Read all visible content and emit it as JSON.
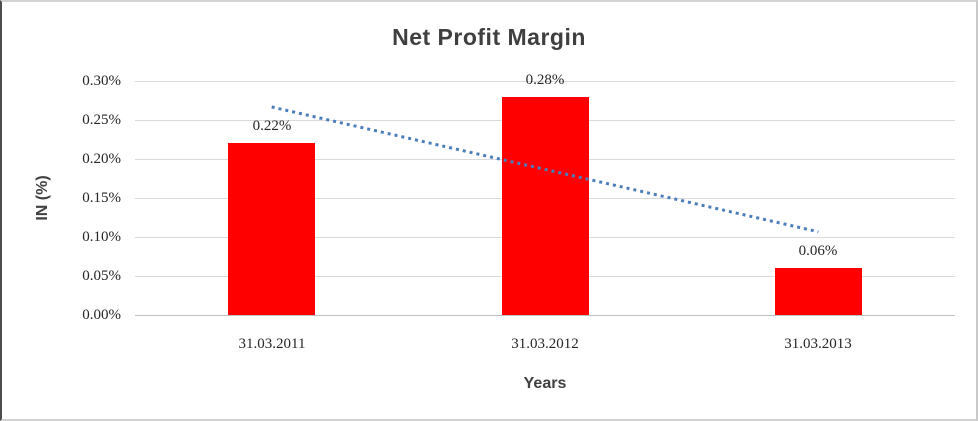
{
  "chart_data": {
    "type": "bar",
    "title": "Net Profit Margin",
    "xlabel": "Years",
    "ylabel": "IN (%)",
    "categories": [
      "31.03.2011",
      "31.03.2012",
      "31.03.2013"
    ],
    "values": [
      0.22,
      0.28,
      0.06
    ],
    "data_labels": [
      "0.22%",
      "0.28%",
      "0.06%"
    ],
    "ylim": [
      0,
      0.3
    ],
    "y_ticks": [
      {
        "value": 0.0,
        "label": "0.00%"
      },
      {
        "value": 0.05,
        "label": "0.05%"
      },
      {
        "value": 0.1,
        "label": "0.10%"
      },
      {
        "value": 0.15,
        "label": "0.15%"
      },
      {
        "value": 0.2,
        "label": "0.20%"
      },
      {
        "value": 0.25,
        "label": "0.25%"
      },
      {
        "value": 0.3,
        "label": "0.30%"
      }
    ],
    "grid": true,
    "legend": false,
    "bar_color": "#ff0000",
    "trendline": {
      "type": "linear",
      "line_style": "dotted",
      "color": "#4a7ebb",
      "values": [
        0.2667,
        0.1067
      ]
    },
    "colors": {
      "title": "#3f3f3f",
      "axis_title": "#404040",
      "tick_label": "#262626",
      "data_label": "#262626",
      "gridline": "#d9d9d9",
      "axis_line": "#c0c0c0",
      "background": "#ffffff"
    }
  }
}
